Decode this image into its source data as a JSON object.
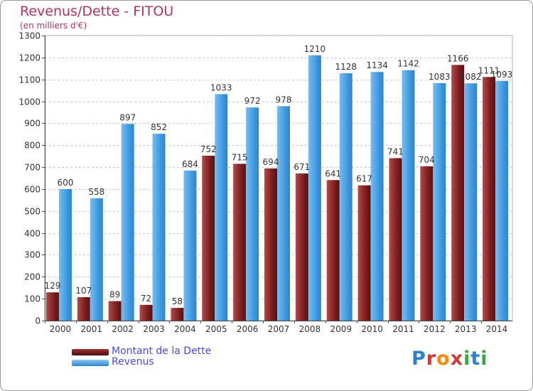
{
  "header": {
    "title": "Revenus/Dette - FITOU",
    "subtitle": "(en milliers d'€)"
  },
  "legend": {
    "items": [
      {
        "label": "Montant de la Dette",
        "color": "#7b1f1f"
      },
      {
        "label": "Revenus",
        "color": "#3f9ae0"
      }
    ]
  },
  "branding": {
    "logo_text": "Proxiti"
  },
  "colors": {
    "dette": "#7b1f1f",
    "dette_light": "#b24a4a",
    "revenus": "#3f9ae0",
    "revenus_light": "#78bdf0",
    "grid": "#c8c8c8",
    "axis_text": "#333333"
  },
  "chart_data": {
    "type": "bar",
    "title": "Revenus/Dette - FITOU",
    "subtitle": "(en milliers d'€)",
    "xlabel": "",
    "ylabel": "",
    "ylim": [
      0,
      1300
    ],
    "ytick_step": 100,
    "grid": true,
    "categories": [
      "2000",
      "2001",
      "2002",
      "2003",
      "2004",
      "2005",
      "2006",
      "2007",
      "2008",
      "2009",
      "2010",
      "2011",
      "2012",
      "2013",
      "2014"
    ],
    "series": [
      {
        "name": "Montant de la Dette",
        "values": [
          129,
          107,
          89,
          72,
          58,
          752,
          715,
          694,
          671,
          641,
          617,
          741,
          704,
          1166,
          1111
        ]
      },
      {
        "name": "Revenus",
        "values": [
          600,
          558,
          897,
          852,
          684,
          1033,
          972,
          978,
          1210,
          1128,
          1134,
          1142,
          1083,
          1082,
          1093
        ]
      }
    ],
    "legend_position": "bottom-left"
  }
}
